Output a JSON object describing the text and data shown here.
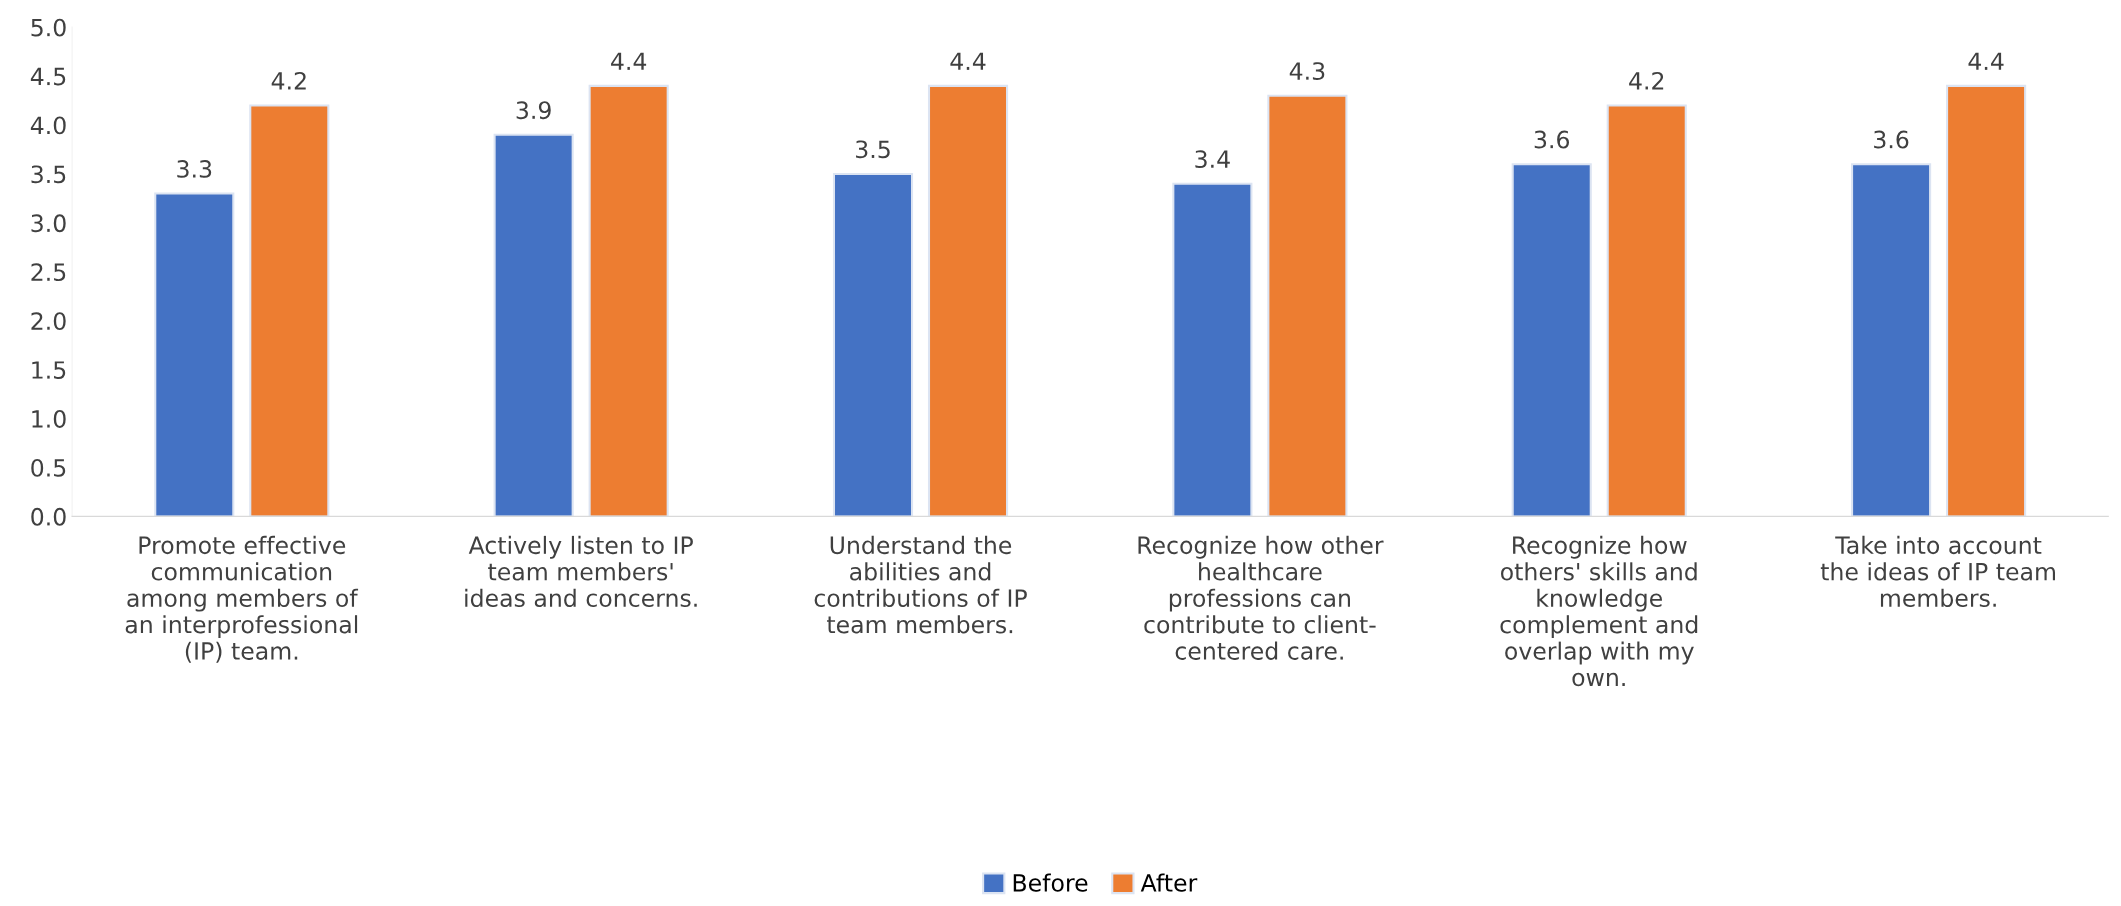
{
  "chart_data": {
    "type": "bar",
    "categories": [
      "Promote effective\ncommunication\namong members of\nan interprofessional\n(IP) team.",
      "Actively listen to IP\nteam members'\nideas and concerns.",
      "Understand the\nabilities and\ncontributions of IP\nteam members.",
      "Recognize how other\nhealthcare\nprofessions can\ncontribute to client-\ncentered care.",
      "Recognize how\nothers' skills and\nknowledge\ncomplement and\noverlap with my\nown.",
      "Take into account\nthe ideas of IP team\nmembers."
    ],
    "series": [
      {
        "name": "Before",
        "color": "#4472c4",
        "values": [
          3.3,
          3.9,
          3.5,
          3.4,
          3.6,
          3.6
        ]
      },
      {
        "name": "After",
        "color": "#ed7d31",
        "values": [
          4.2,
          4.4,
          4.4,
          4.3,
          4.2,
          4.4
        ]
      }
    ],
    "ylim": [
      0,
      5
    ],
    "yticks": [
      "0.0",
      "0.5",
      "1.0",
      "1.5",
      "2.0",
      "2.5",
      "3.0",
      "3.5",
      "4.0",
      "4.5",
      "5.0"
    ],
    "data_labels": true,
    "grid": false,
    "legend": "bottom"
  }
}
